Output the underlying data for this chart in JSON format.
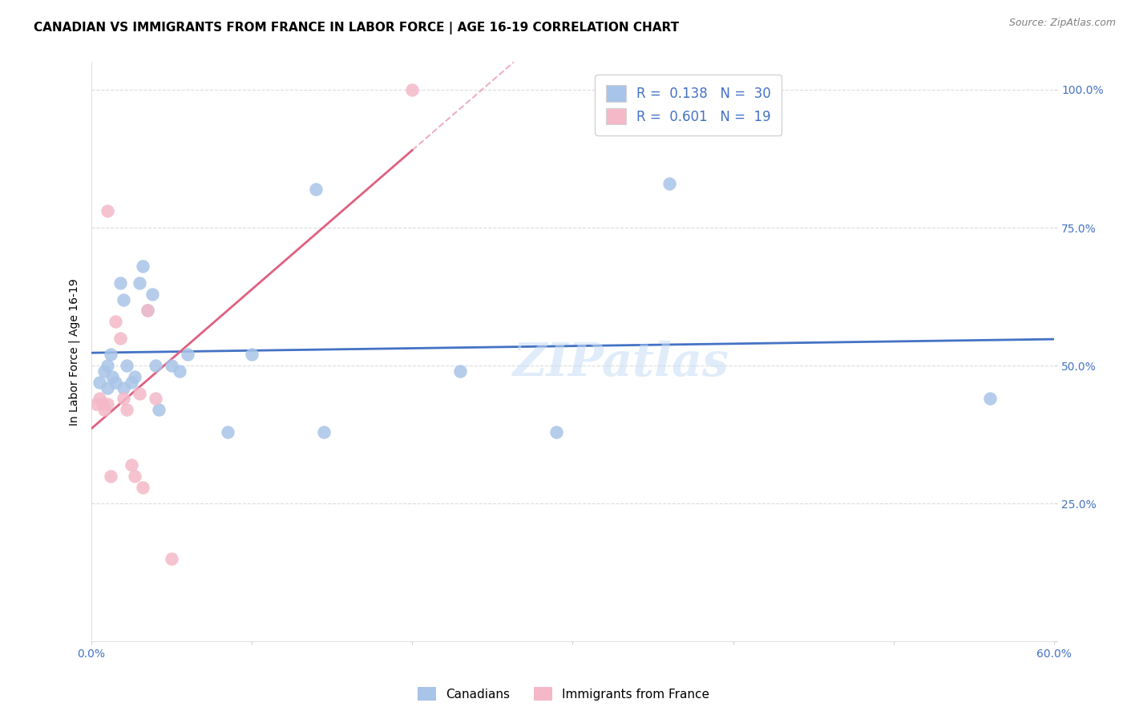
{
  "title": "CANADIAN VS IMMIGRANTS FROM FRANCE IN LABOR FORCE | AGE 16-19 CORRELATION CHART",
  "source": "Source: ZipAtlas.com",
  "ylabel": "In Labor Force | Age 16-19",
  "xlim": [
    0.0,
    0.6
  ],
  "ylim": [
    0.0,
    1.05
  ],
  "yticks": [
    0.0,
    0.25,
    0.5,
    0.75,
    1.0
  ],
  "ytick_labels": [
    "",
    "25.0%",
    "50.0%",
    "75.0%",
    "100.0%"
  ],
  "xticks": [
    0.0,
    0.1,
    0.2,
    0.3,
    0.4,
    0.5,
    0.6
  ],
  "xtick_labels": [
    "0.0%",
    "",
    "",
    "",
    "",
    "",
    "60.0%"
  ],
  "canadians_x": [
    0.005,
    0.008,
    0.01,
    0.01,
    0.012,
    0.013,
    0.015,
    0.018,
    0.02,
    0.02,
    0.022,
    0.025,
    0.027,
    0.03,
    0.032,
    0.035,
    0.038,
    0.04,
    0.042,
    0.05,
    0.055,
    0.06,
    0.085,
    0.1,
    0.14,
    0.145,
    0.23,
    0.29,
    0.36,
    0.56
  ],
  "canadians_y": [
    0.47,
    0.49,
    0.5,
    0.46,
    0.52,
    0.48,
    0.47,
    0.65,
    0.62,
    0.46,
    0.5,
    0.47,
    0.48,
    0.65,
    0.68,
    0.6,
    0.63,
    0.5,
    0.42,
    0.5,
    0.49,
    0.52,
    0.38,
    0.52,
    0.82,
    0.38,
    0.49,
    0.38,
    0.83,
    0.44
  ],
  "france_x": [
    0.003,
    0.005,
    0.007,
    0.008,
    0.01,
    0.01,
    0.012,
    0.015,
    0.018,
    0.02,
    0.022,
    0.025,
    0.027,
    0.03,
    0.032,
    0.035,
    0.04,
    0.05,
    0.2
  ],
  "france_y": [
    0.43,
    0.44,
    0.43,
    0.42,
    0.43,
    0.78,
    0.3,
    0.58,
    0.55,
    0.44,
    0.42,
    0.32,
    0.3,
    0.45,
    0.28,
    0.6,
    0.44,
    0.15,
    1.0
  ],
  "canadian_color": "#a8c4e8",
  "france_color": "#f4b8c8",
  "canadian_line_color": "#4472c4",
  "france_line_color": "#e06080",
  "canadian_R": 0.138,
  "canadian_N": 30,
  "france_R": 0.601,
  "france_N": 19,
  "watermark": "ZIPatlas",
  "marker_size": 140,
  "title_fontsize": 11,
  "label_fontsize": 10,
  "tick_fontsize": 10,
  "legend_fontsize": 12
}
